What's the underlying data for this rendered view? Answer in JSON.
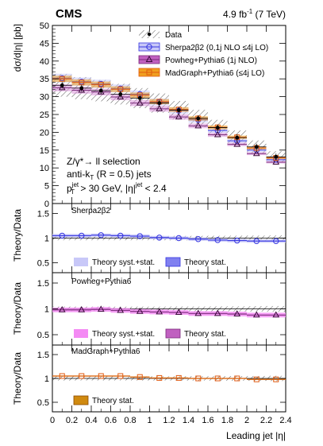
{
  "header": {
    "experiment": "CMS",
    "lumi": "4.9 fb",
    "lumi_sup": "-1",
    "energy": " (7 TeV)"
  },
  "selection": {
    "line1": "Z/γ*→ ll selection",
    "line2_main": "anti-k",
    "line2_sub": "T",
    "line2_rest": " (R = 0.5) jets",
    "line3_p": "p",
    "line3_sup": "jet",
    "line3_sub": "T",
    "line3_mid": " > 30 GeV, |η|",
    "line3_sup2": "jet",
    "line3_end": " < 2.4"
  },
  "legend": {
    "data": "Data",
    "sherpa": "Sherpa2β2 (0,1j NLO ≤4j LO)",
    "powheg": "Powheg+Pythia6 (1j NLO)",
    "madgraph": "MadGraph+Pythia6 (≤4j LO)"
  },
  "panels": {
    "sherpa_title": "Sherpa2β2",
    "powheg_title": "Powheg+Pythia6",
    "madgraph_title": "MadGraph+Pythia6",
    "syst_stat": "Theory syst.+stat.",
    "stat": "Theory stat."
  },
  "colors": {
    "sherpa": "#3434e0",
    "sherpa_band": "#c8c8f8",
    "powheg": "#7a2a7a",
    "powheg_band": "#f48af4",
    "powheg_stat": "#c060c0",
    "madgraph": "#e05a10",
    "madgraph_band": "#f0a020",
    "madgraph_stat": "#d08a10",
    "hatch": "#666666"
  },
  "chart_data": {
    "type": "line",
    "xlabel": "Leading jet |η|",
    "ylabel_main": "dσ/d|η| [pb]",
    "ylabel_ratio": "Theory/Data",
    "xlim": [
      0,
      2.4
    ],
    "xticks": [
      "0",
      "0.2",
      "0.4",
      "0.6",
      "0.8",
      "1",
      "1.2",
      "1.4",
      "1.6",
      "1.8",
      "2",
      "2.2",
      "2.4"
    ],
    "main_ylim": [
      0,
      50
    ],
    "main_yticks": [
      "0",
      "5",
      "10",
      "15",
      "20",
      "25",
      "30",
      "35",
      "40",
      "45",
      "50"
    ],
    "ratio_ylim": [
      0.3,
      1.7
    ],
    "ratio_yticks": [
      "0.5",
      "1",
      "1.5"
    ],
    "bin_edges": [
      0,
      0.2,
      0.4,
      0.6,
      0.8,
      1.0,
      1.2,
      1.4,
      1.6,
      1.8,
      2.0,
      2.2,
      2.4
    ],
    "bin_centers": [
      0.1,
      0.3,
      0.5,
      0.7,
      0.9,
      1.1,
      1.3,
      1.5,
      1.7,
      1.9,
      2.1,
      2.3
    ],
    "series": [
      {
        "name": "Data",
        "values": [
          33.2,
          32.4,
          31.7,
          30.7,
          29.6,
          28.2,
          26.2,
          23.9,
          21.3,
          18.5,
          15.9,
          13.1
        ],
        "uncertainty": [
          3.2,
          3.1,
          3.0,
          2.9,
          2.8,
          2.7,
          2.6,
          2.4,
          2.2,
          2.0,
          1.8,
          1.6
        ]
      },
      {
        "name": "Sherpa2β2 (0,1j NLO ≤4j LO)",
        "values": [
          35.2,
          34.2,
          33.6,
          32.3,
          30.7,
          28.5,
          26.1,
          23.5,
          20.5,
          17.6,
          15.0,
          12.3
        ]
      },
      {
        "name": "Powheg+Pythia6 (1j NLO)",
        "values": [
          32.5,
          31.8,
          31.3,
          29.9,
          28.2,
          26.6,
          24.3,
          21.8,
          19.3,
          16.6,
          14.0,
          11.6
        ]
      },
      {
        "name": "MadGraph+Pythia6 (≤4j LO)",
        "values": [
          35.0,
          34.0,
          33.4,
          32.1,
          30.4,
          28.6,
          26.4,
          23.9,
          21.4,
          18.6,
          15.6,
          12.8
        ]
      }
    ],
    "ratios": [
      {
        "name": "Sherpa2β2",
        "values": [
          1.05,
          1.05,
          1.06,
          1.05,
          1.04,
          1.01,
          1.0,
          0.98,
          0.96,
          0.95,
          0.94,
          0.94
        ]
      },
      {
        "name": "Powheg+Pythia6",
        "values": [
          0.98,
          0.98,
          0.99,
          0.97,
          0.95,
          0.94,
          0.93,
          0.91,
          0.91,
          0.9,
          0.88,
          0.88
        ]
      },
      {
        "name": "MadGraph+Pythia6",
        "values": [
          1.05,
          1.05,
          1.05,
          1.05,
          1.03,
          1.01,
          1.01,
          1.0,
          1.0,
          1.0,
          0.98,
          0.98
        ]
      }
    ]
  }
}
